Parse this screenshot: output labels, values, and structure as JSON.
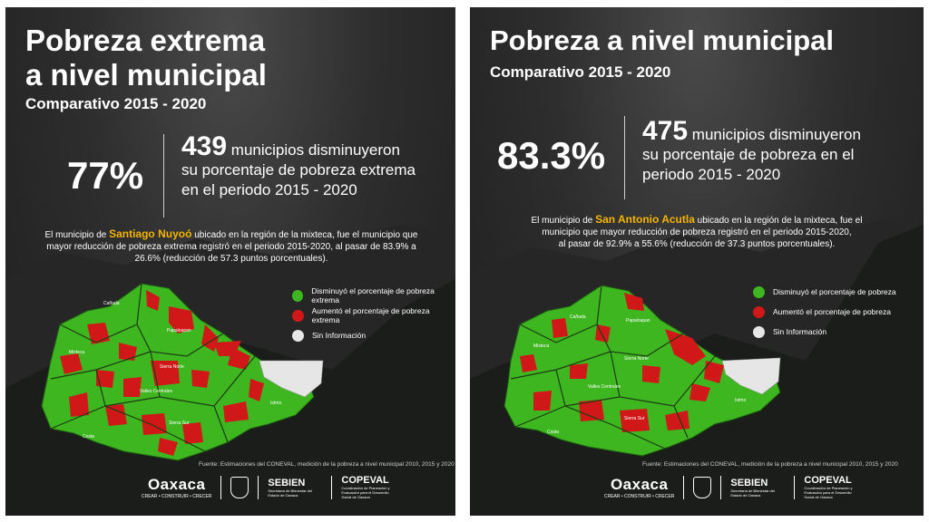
{
  "colors": {
    "decrease": "#3db61f",
    "increase": "#d01818",
    "no_info": "#e6e6e6",
    "highlight": "#f5b400"
  },
  "left": {
    "title_line1": "Pobreza extrema",
    "title_line2": "a nivel municipal",
    "subtitle": "Comparativo 2015 - 2020",
    "big_pct": "77%",
    "stat_number": "439",
    "stat_line1_rest": "municipios disminuyeron",
    "stat_line2": "su porcentaje de pobreza extrema",
    "stat_line3": "en el periodo 2015 - 2020",
    "desc_pre": "El municipio de",
    "desc_highlight": "Santiago Nuyoó",
    "desc_line1_rest": "ubicado  en la región de la mixteca, fue el municipio que",
    "desc_line2": "mayor reducción de pobreza extrema registró en el periodo 2015-2020, al pasar de 83.9% a",
    "desc_line3": "26.6% (reducción de 57.3 puntos porcentuales).",
    "legend": [
      "Disminuyó el porcentaje de pobreza extrema",
      "Aumentó el porcentaje de pobreza extrema",
      "Sin Información"
    ],
    "regions": [
      "Cañada",
      "Papaloapan",
      "Mixteca",
      "Sierra Norte",
      "Valles Centrales",
      "Sierra Sur",
      "Costa",
      "Istmo"
    ],
    "source": "Fuente: Estimaciones del CONEVAL, medición de la pobreza a nivel municipal 2010, 2015 y 2020"
  },
  "right": {
    "title": "Pobreza a nivel municipal",
    "subtitle": "Comparativo 2015 - 2020",
    "big_pct": "83.3%",
    "stat_number": "475",
    "stat_line1_rest": "municipios disminuyeron",
    "stat_line2": "su porcentaje de pobreza en el",
    "stat_line3": "periodo 2015 - 2020",
    "desc_pre": "El municipio de",
    "desc_highlight": "San Antonio Acutla",
    "desc_line1_rest": "ubicado  en la región de la mixteca, fue el",
    "desc_line2": "municipio que mayor reducción de pobreza registró en el periodo 2015-2020,",
    "desc_line3": "al pasar de 92.9% a 55.6% (reducción de 37.3 puntos porcentuales).",
    "legend": [
      "Disminuyó el porcentaje de pobreza",
      "Aumentó el porcentaje de pobreza",
      "Sin Información"
    ],
    "regions": [
      "Cañada",
      "Papaloapan",
      "Mixteca",
      "Sierra Norte",
      "Valles Centrales",
      "Sierra Sur",
      "Costa",
      "Istmo"
    ],
    "source": "Fuente: Estimaciones del CONEVAL, medición de la pobreza a nivel municipal 2010, 2015 y 2020"
  },
  "logos": {
    "oaxaca": "Oaxaca",
    "oaxaca_tag": "CREAR • CONSTRUIR • CRECER",
    "sebien": "SEBIEN",
    "sebien_sub": "Secretaría de Bienestar del Estado de Oaxaca",
    "copeval": "COPEVAL",
    "copeval_sub": "Coordinación de Planeación y Evaluación para el Desarrollo Social de Oaxaca"
  }
}
